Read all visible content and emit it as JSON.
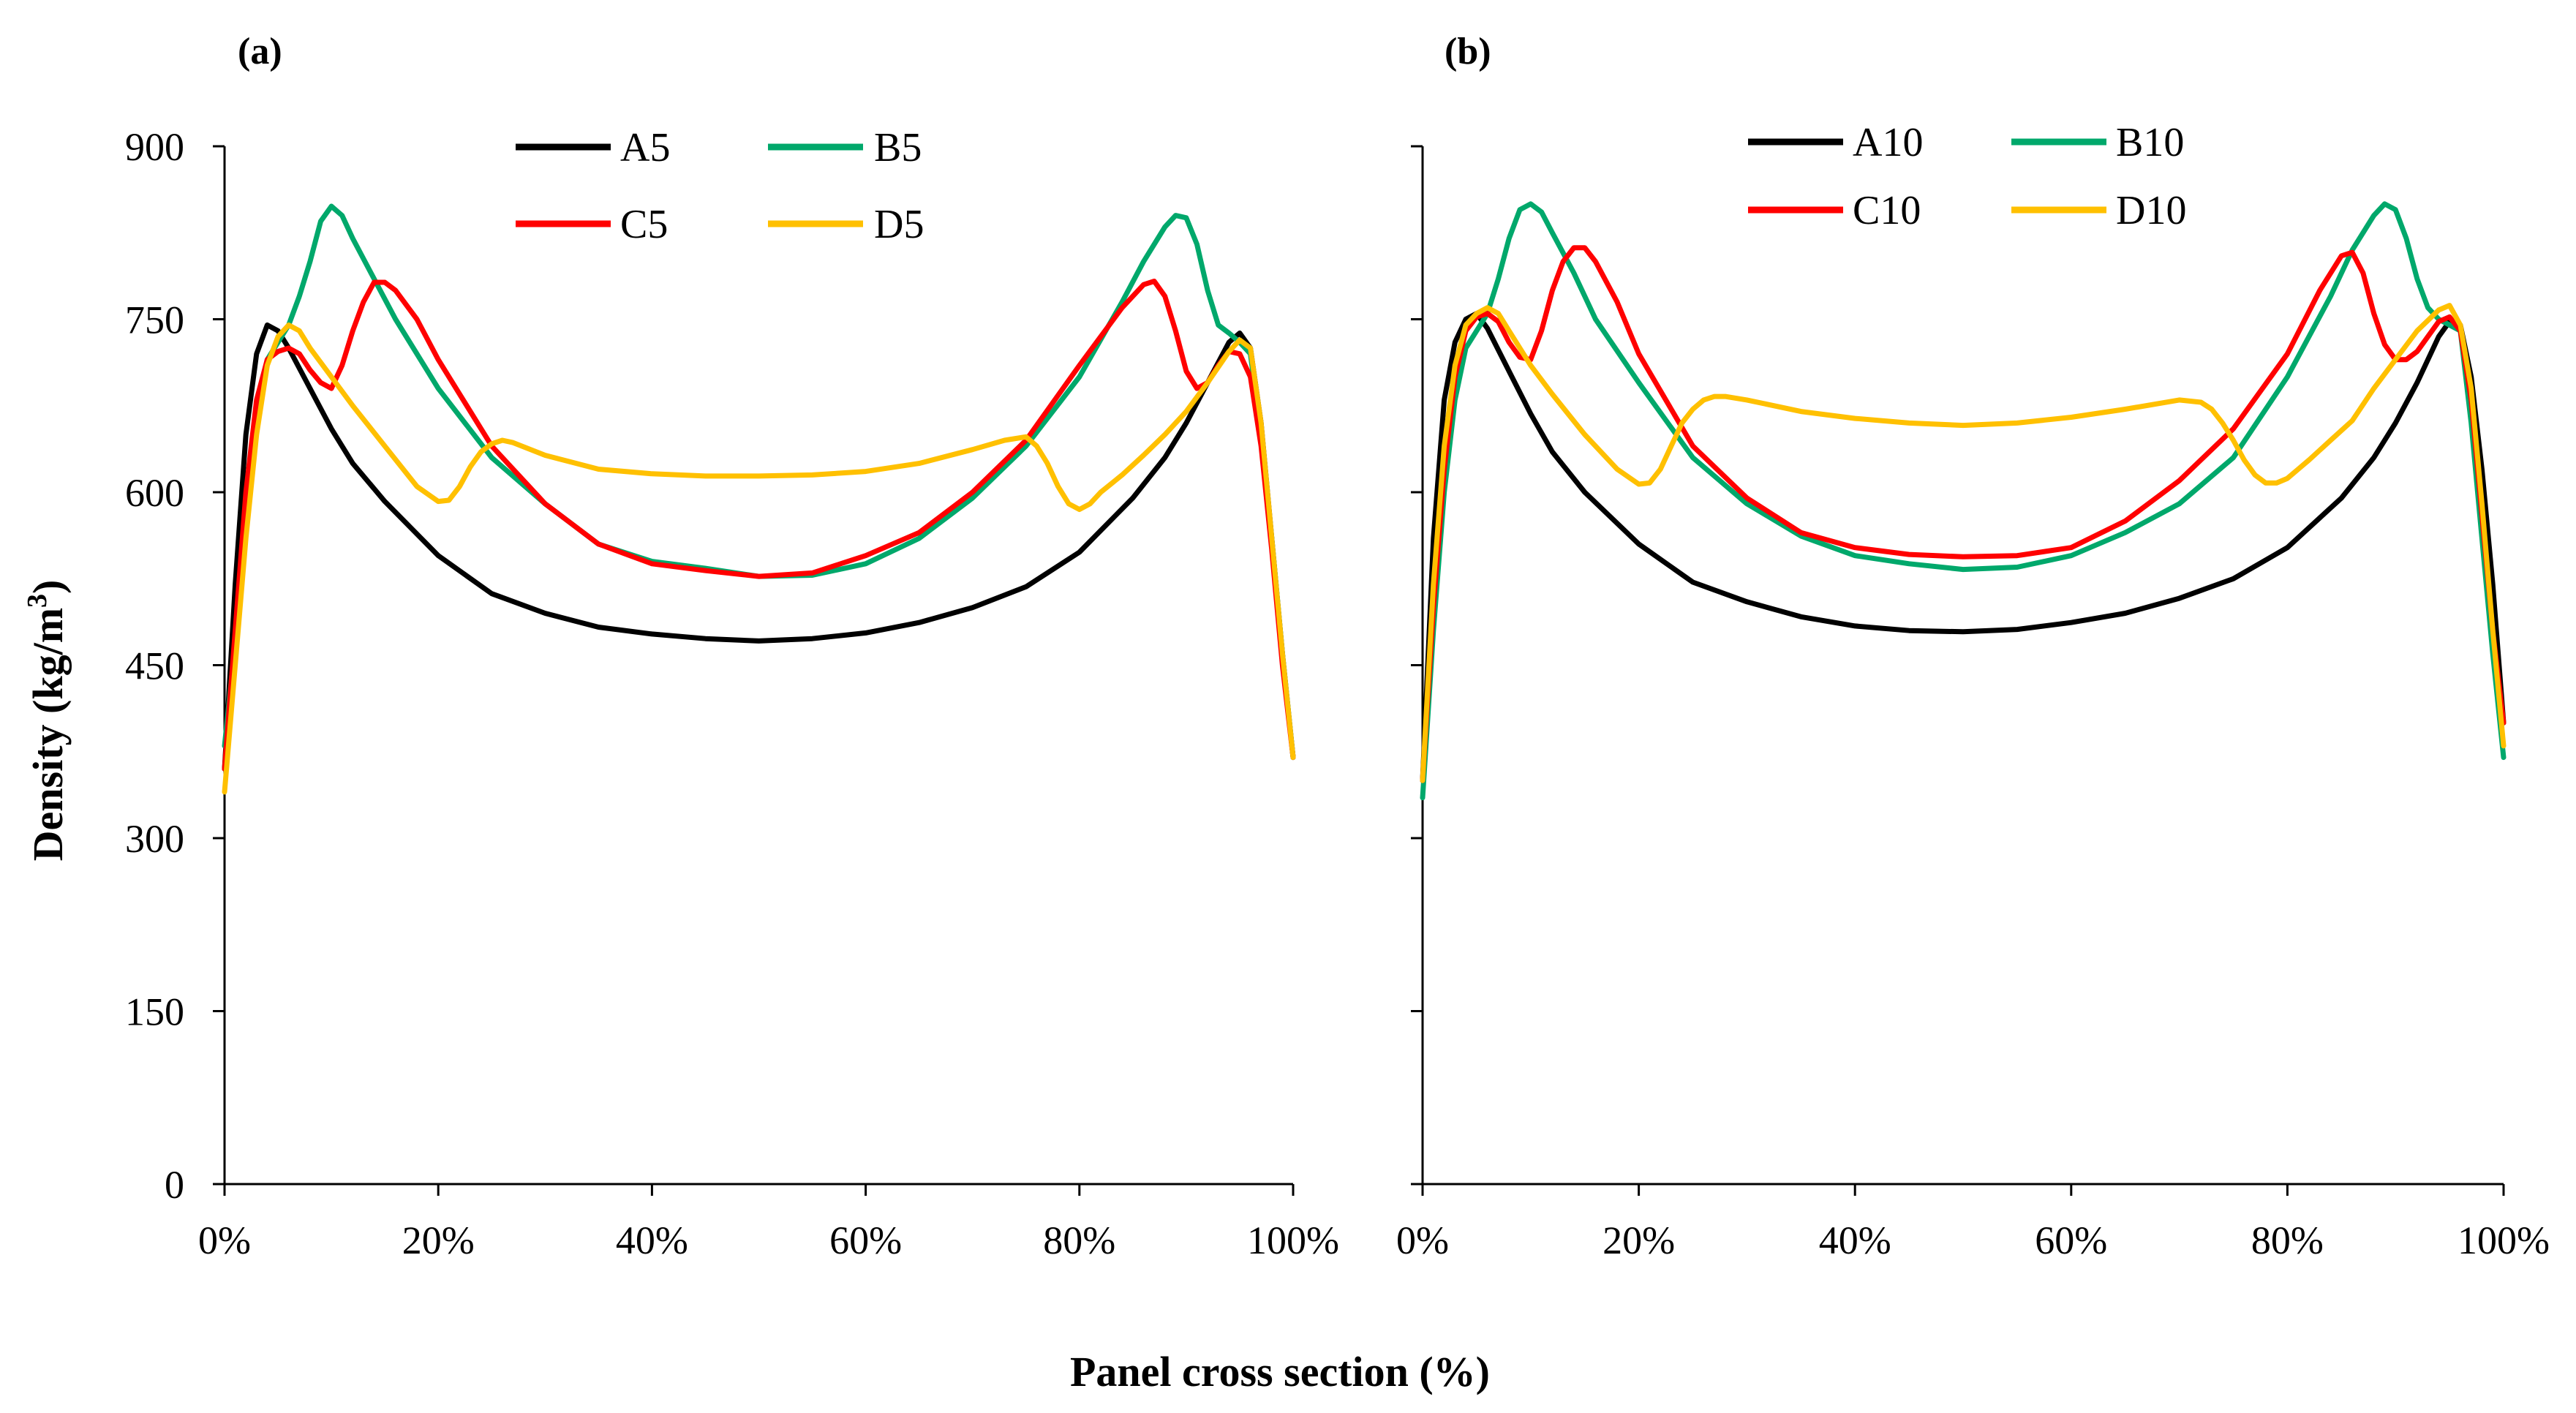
{
  "chart_data": [
    {
      "type": "line",
      "panel_label": "(a)",
      "xlabel": "Panel cross section (%)",
      "ylabel": "Density (kg/m3)",
      "ylabel_main": "Density (kg/m",
      "ylabel_sup": "3",
      "ylabel_close": ")",
      "ylim": [
        0,
        900
      ],
      "xlim": [
        0,
        100
      ],
      "y_ticks": [
        "0",
        "150",
        "300",
        "450",
        "600",
        "750",
        "900"
      ],
      "x_ticks": [
        "0%",
        "20%",
        "40%",
        "60%",
        "80%",
        "100%"
      ],
      "legend_position": "top",
      "series": [
        {
          "name": "A5",
          "color": "#000000",
          "x": [
            0,
            1,
            2,
            3,
            4,
            5,
            6,
            8,
            10,
            12,
            15,
            20,
            25,
            30,
            35,
            40,
            45,
            50,
            55,
            60,
            65,
            70,
            75,
            80,
            85,
            88,
            90,
            92,
            94,
            95,
            96,
            97,
            98,
            99,
            100
          ],
          "values": [
            360,
            520,
            650,
            720,
            745,
            740,
            725,
            690,
            655,
            625,
            592,
            545,
            512,
            495,
            483,
            477,
            473,
            471,
            473,
            478,
            487,
            500,
            518,
            548,
            595,
            630,
            660,
            695,
            730,
            738,
            725,
            660,
            560,
            460,
            370
          ]
        },
        {
          "name": "B5",
          "color": "#00a86b",
          "x": [
            0,
            1,
            2,
            3,
            4,
            5,
            6,
            7,
            8,
            9,
            10,
            11,
            12,
            14,
            16,
            20,
            25,
            30,
            35,
            40,
            45,
            50,
            55,
            60,
            65,
            70,
            75,
            80,
            84,
            86,
            88,
            89,
            90,
            91,
            92,
            93,
            94,
            95,
            96,
            97,
            98,
            99,
            100
          ],
          "values": [
            380,
            470,
            580,
            670,
            715,
            730,
            745,
            770,
            800,
            835,
            848,
            840,
            820,
            785,
            750,
            690,
            630,
            590,
            555,
            540,
            534,
            527,
            528,
            538,
            560,
            595,
            640,
            700,
            765,
            800,
            830,
            840,
            838,
            815,
            775,
            745,
            738,
            730,
            720,
            650,
            560,
            460,
            370
          ]
        },
        {
          "name": "C5",
          "color": "#ff0000",
          "x": [
            0,
            1,
            2,
            3,
            4,
            5,
            6,
            7,
            8,
            9,
            10,
            11,
            12,
            13,
            14,
            15,
            16,
            18,
            20,
            25,
            30,
            35,
            40,
            45,
            50,
            55,
            60,
            65,
            70,
            75,
            80,
            84,
            86,
            87,
            88,
            89,
            90,
            91,
            92,
            93,
            94,
            95,
            96,
            97,
            98,
            99,
            100
          ],
          "values": [
            360,
            480,
            600,
            680,
            715,
            722,
            725,
            720,
            706,
            695,
            690,
            710,
            740,
            765,
            782,
            782,
            775,
            750,
            715,
            640,
            590,
            555,
            538,
            532,
            527,
            530,
            545,
            565,
            600,
            645,
            710,
            760,
            780,
            783,
            770,
            740,
            705,
            690,
            695,
            710,
            722,
            720,
            700,
            640,
            550,
            450,
            370
          ]
        },
        {
          "name": "D5",
          "color": "#ffc000",
          "x": [
            0,
            1,
            2,
            3,
            4,
            5,
            6,
            7,
            8,
            10,
            12,
            15,
            18,
            20,
            21,
            22,
            23,
            24,
            25,
            26,
            27,
            30,
            35,
            40,
            45,
            50,
            55,
            60,
            65,
            70,
            73,
            75,
            76,
            77,
            78,
            79,
            80,
            81,
            82,
            84,
            86,
            88,
            90,
            92,
            94,
            95,
            96,
            97,
            98,
            99,
            100
          ],
          "values": [
            340,
            450,
            560,
            650,
            710,
            735,
            745,
            740,
            725,
            700,
            675,
            640,
            605,
            592,
            593,
            605,
            622,
            635,
            642,
            645,
            643,
            632,
            620,
            616,
            614,
            614,
            615,
            618,
            625,
            637,
            645,
            648,
            640,
            625,
            605,
            590,
            585,
            590,
            600,
            615,
            632,
            650,
            670,
            695,
            722,
            732,
            725,
            660,
            560,
            460,
            370
          ]
        }
      ]
    },
    {
      "type": "line",
      "panel_label": "(b)",
      "xlabel": "Panel cross section (%)",
      "ylim": [
        0,
        900
      ],
      "xlim": [
        0,
        100
      ],
      "x_ticks": [
        "0%",
        "20%",
        "40%",
        "60%",
        "80%",
        "100%"
      ],
      "legend_position": "top",
      "series": [
        {
          "name": "A10",
          "color": "#000000",
          "x": [
            0,
            1,
            2,
            3,
            4,
            5,
            6,
            8,
            10,
            12,
            15,
            20,
            25,
            30,
            35,
            40,
            45,
            50,
            55,
            60,
            65,
            70,
            75,
            80,
            85,
            88,
            90,
            92,
            94,
            95,
            96,
            97,
            98,
            99,
            100
          ],
          "values": [
            350,
            560,
            680,
            730,
            750,
            755,
            742,
            705,
            668,
            635,
            600,
            555,
            522,
            505,
            492,
            484,
            480,
            479,
            481,
            487,
            495,
            508,
            525,
            552,
            595,
            630,
            660,
            695,
            735,
            748,
            745,
            700,
            620,
            520,
            400
          ]
        },
        {
          "name": "B10",
          "color": "#00a86b",
          "x": [
            0,
            1,
            2,
            3,
            4,
            5,
            6,
            7,
            8,
            9,
            10,
            11,
            12,
            14,
            16,
            20,
            25,
            30,
            35,
            40,
            45,
            50,
            55,
            60,
            65,
            70,
            75,
            80,
            84,
            86,
            88,
            89,
            90,
            91,
            92,
            93,
            94,
            95,
            96,
            97,
            98,
            99,
            100
          ],
          "values": [
            335,
            480,
            600,
            680,
            725,
            740,
            755,
            785,
            820,
            845,
            850,
            843,
            825,
            790,
            750,
            695,
            630,
            590,
            562,
            545,
            538,
            533,
            535,
            545,
            565,
            590,
            630,
            700,
            770,
            810,
            840,
            850,
            845,
            820,
            785,
            760,
            750,
            745,
            740,
            660,
            560,
            460,
            370
          ]
        },
        {
          "name": "C10",
          "color": "#ff0000",
          "x": [
            0,
            1,
            2,
            3,
            4,
            5,
            6,
            7,
            8,
            9,
            10,
            11,
            12,
            13,
            14,
            15,
            16,
            18,
            20,
            25,
            30,
            35,
            40,
            45,
            50,
            55,
            60,
            65,
            70,
            75,
            80,
            83,
            85,
            86,
            87,
            88,
            89,
            90,
            91,
            92,
            93,
            94,
            95,
            96,
            97,
            98,
            99,
            100
          ],
          "values": [
            350,
            500,
            620,
            700,
            740,
            752,
            755,
            748,
            730,
            717,
            715,
            740,
            775,
            800,
            812,
            812,
            800,
            765,
            720,
            640,
            595,
            565,
            552,
            546,
            544,
            545,
            552,
            575,
            610,
            655,
            720,
            775,
            805,
            808,
            790,
            755,
            728,
            715,
            715,
            722,
            735,
            748,
            752,
            740,
            680,
            580,
            480,
            400
          ]
        },
        {
          "name": "D10",
          "color": "#ffc000",
          "x": [
            0,
            1,
            2,
            3,
            4,
            5,
            6,
            7,
            8,
            10,
            12,
            15,
            18,
            20,
            21,
            22,
            23,
            24,
            25,
            26,
            27,
            28,
            30,
            35,
            40,
            45,
            50,
            55,
            60,
            65,
            70,
            72,
            73,
            74,
            75,
            76,
            77,
            78,
            79,
            80,
            81,
            82,
            84,
            86,
            88,
            90,
            92,
            94,
            95,
            96,
            97,
            98,
            99,
            100
          ],
          "values": [
            350,
            520,
            640,
            710,
            745,
            755,
            760,
            755,
            740,
            710,
            685,
            650,
            620,
            607,
            608,
            620,
            640,
            660,
            672,
            680,
            683,
            683,
            680,
            670,
            664,
            660,
            658,
            660,
            665,
            672,
            680,
            678,
            672,
            660,
            645,
            628,
            615,
            608,
            608,
            612,
            620,
            628,
            645,
            662,
            690,
            715,
            740,
            758,
            762,
            745,
            690,
            590,
            480,
            380
          ]
        }
      ]
    }
  ]
}
